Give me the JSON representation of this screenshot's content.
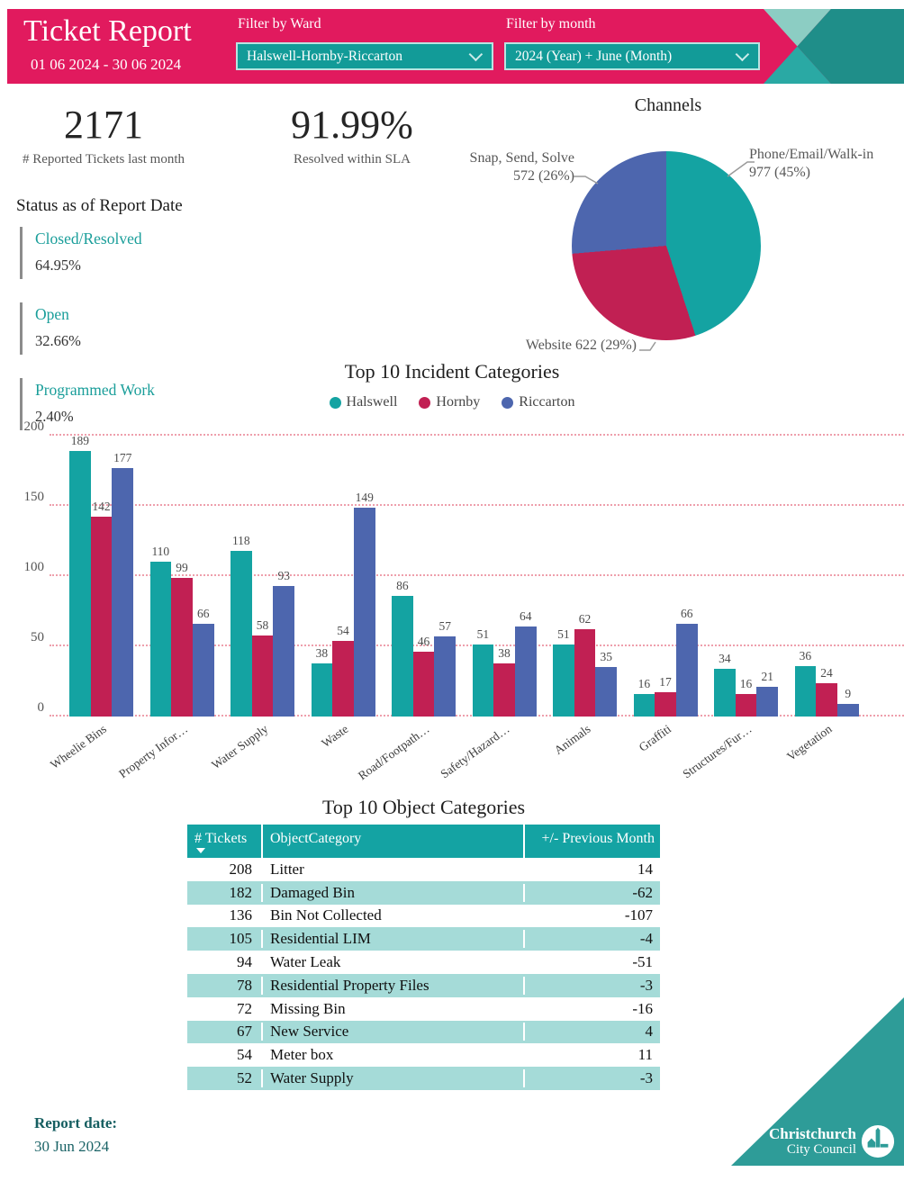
{
  "header": {
    "title": "Ticket Report",
    "date_range": "01 06 2024 - 30 06 2024",
    "filters": [
      {
        "label": "Filter by Ward",
        "value": "Halswell-Hornby-Riccarton"
      },
      {
        "label": "Filter by month",
        "value": "2024 (Year) + June (Month)"
      }
    ]
  },
  "kpis": [
    {
      "value": "2171",
      "label": "# Reported Tickets last month"
    },
    {
      "value": "91.99%",
      "label": "Resolved within SLA"
    }
  ],
  "status": {
    "heading": "Status as of Report Date",
    "items": [
      {
        "label": "Closed/Resolved",
        "value": "64.95%"
      },
      {
        "label": "Open",
        "value": "32.66%"
      },
      {
        "label": "Programmed Work",
        "value": "2.40%"
      }
    ]
  },
  "chart_data": [
    {
      "type": "pie",
      "title": "Channels",
      "start_angle_deg": 0,
      "direction": "clockwise",
      "slices": [
        {
          "label": "Phone/Email/Walk-in",
          "value": 977,
          "pct": "45%",
          "color": "#14A3A2",
          "display": [
            "Phone/Email/Walk-in",
            "977 (45%)"
          ]
        },
        {
          "label": "Website",
          "value": 622,
          "pct": "29%",
          "color": "#C12053",
          "display": [
            "Website 622 (29%)"
          ]
        },
        {
          "label": "Snap, Send, Solve",
          "value": 572,
          "pct": "26%",
          "color": "#4D66AE",
          "display": [
            "Snap, Send, Solve",
            "572 (26%)"
          ]
        }
      ]
    },
    {
      "type": "bar",
      "title": "Top 10 Incident Categories",
      "categories": [
        "Wheelie Bins",
        "Property Infor…",
        "Water Supply",
        "Waste",
        "Road/Footpath…",
        "Safety/Hazard…",
        "Animals",
        "Graffiti",
        "Structures/Fur…",
        "Vegetation"
      ],
      "series": [
        {
          "name": "Halswell",
          "color": "#14A3A2",
          "values": [
            189,
            110,
            118,
            38,
            86,
            51,
            51,
            16,
            34,
            36
          ]
        },
        {
          "name": "Hornby",
          "color": "#C12053",
          "values": [
            142,
            99,
            58,
            54,
            46,
            38,
            62,
            17,
            16,
            24
          ]
        },
        {
          "name": "Riccarton",
          "color": "#4D66AE",
          "values": [
            177,
            66,
            93,
            149,
            57,
            64,
            35,
            66,
            21,
            9
          ]
        }
      ],
      "ylim": [
        0,
        200
      ],
      "yticks": [
        0,
        50,
        100,
        150,
        200
      ],
      "grid": "dotted",
      "legend_position": "top-center"
    }
  ],
  "object_table": {
    "title": "Top 10 Object Categories",
    "columns": [
      "# Tickets",
      "ObjectCategory",
      "+/- Previous Month"
    ],
    "sort": {
      "column": "# Tickets",
      "direction": "desc"
    },
    "rows": [
      [
        208,
        "Litter",
        14
      ],
      [
        182,
        "Damaged Bin",
        -62
      ],
      [
        136,
        "Bin Not Collected",
        -107
      ],
      [
        105,
        "Residential LIM",
        -4
      ],
      [
        94,
        "Water Leak",
        -51
      ],
      [
        78,
        "Residential Property Files",
        -3
      ],
      [
        72,
        "Missing Bin",
        -16
      ],
      [
        67,
        "New Service",
        4
      ],
      [
        54,
        "Meter box",
        11
      ],
      [
        52,
        "Water Supply",
        -3
      ]
    ]
  },
  "footer": {
    "report_date_label": "Report date:",
    "report_date": "30 Jun 2024",
    "logo_line1": "Christchurch",
    "logo_line2": "City Council"
  },
  "theme": {
    "header_pink": "#E11A5E",
    "teal": "#14A3A2",
    "crimson": "#C12053",
    "blue": "#4D66AE",
    "light_teal_row": "#A5DBD8",
    "deco_light_teal": "#8CCDC3",
    "deco_mid_teal": "#2AA9A4",
    "deco_dark_teal": "#1F8E89",
    "status_teal": "#1A9E9A",
    "footer_dark_teal": "#155E60",
    "gridline_pink": "#EE9FAC"
  }
}
